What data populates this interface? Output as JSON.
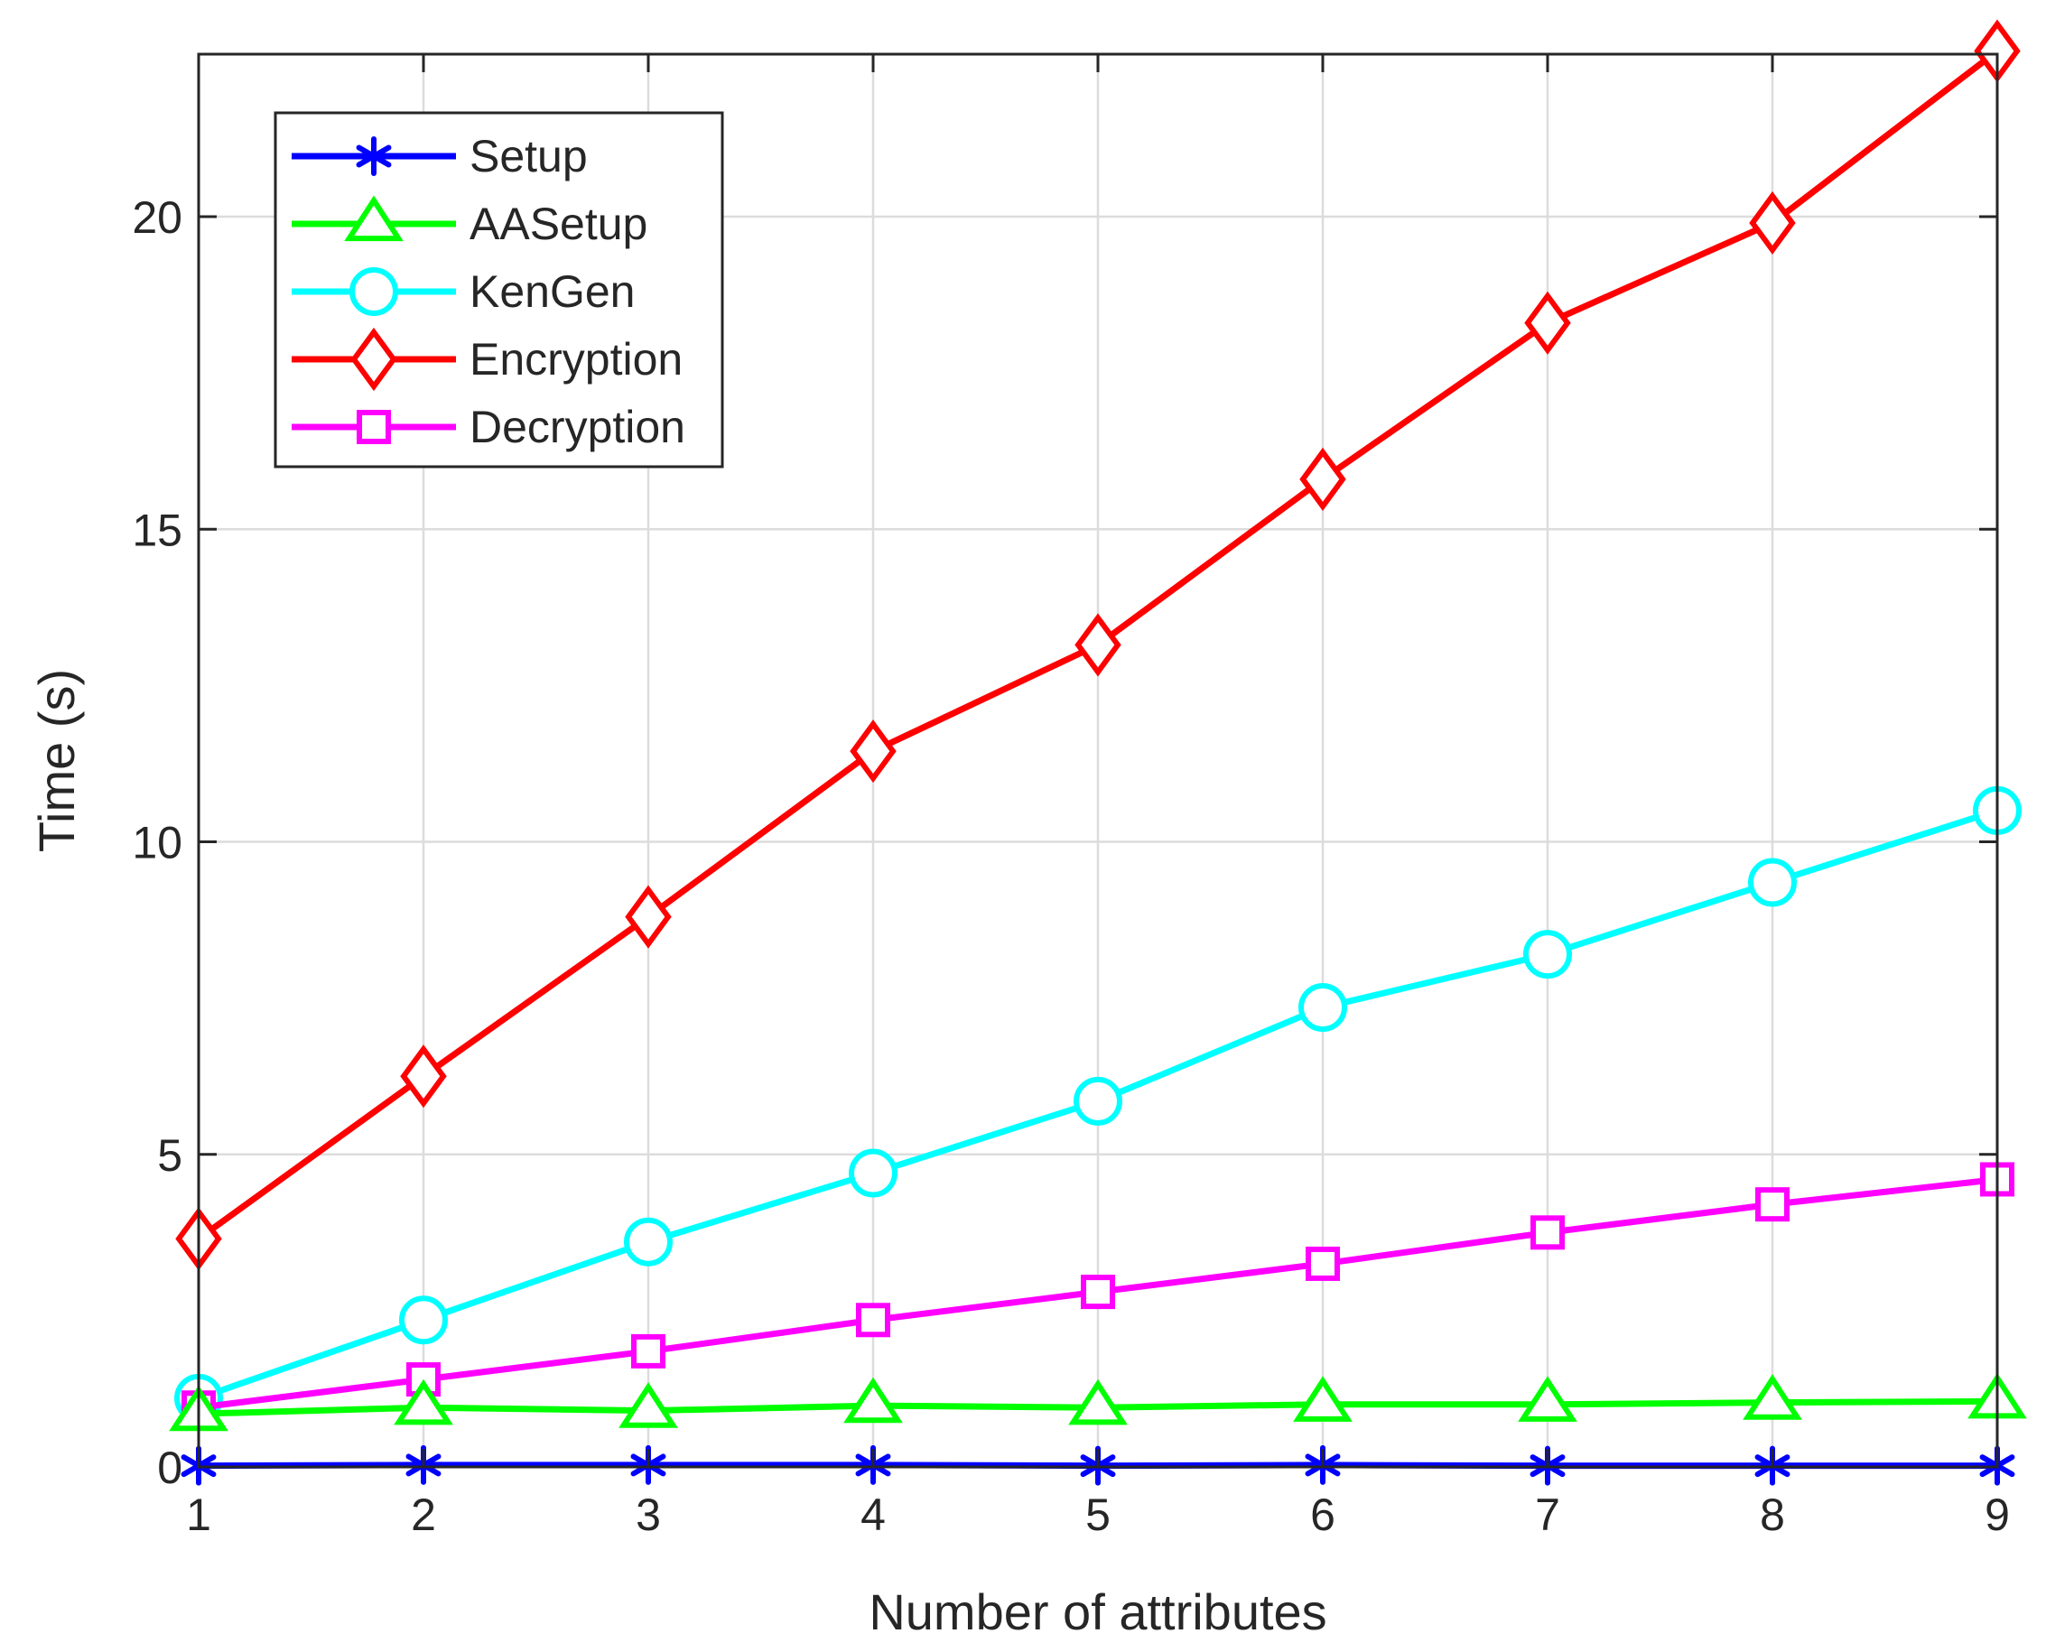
{
  "chart_data": {
    "type": "line",
    "xlabel": "Number of attributes",
    "ylabel": "Time (s)",
    "xlim": [
      1,
      9
    ],
    "ylim": [
      0,
      22.6
    ],
    "xticks": [
      1,
      2,
      3,
      4,
      5,
      6,
      7,
      8,
      9
    ],
    "yticks": [
      0,
      5,
      10,
      15,
      20
    ],
    "grid": true,
    "legend_position": "top-left",
    "x": [
      1,
      2,
      3,
      4,
      5,
      6,
      7,
      8,
      9
    ],
    "series": [
      {
        "name": "Setup",
        "color": "#0000ff",
        "marker": "asterisk",
        "values": [
          0.02,
          0.03,
          0.03,
          0.03,
          0.02,
          0.03,
          0.02,
          0.02,
          0.02
        ]
      },
      {
        "name": "AASetup",
        "color": "#00ff00",
        "marker": "triangle",
        "values": [
          0.85,
          0.95,
          0.9,
          0.98,
          0.95,
          1.0,
          1.0,
          1.03,
          1.05
        ]
      },
      {
        "name": "KenGen",
        "color": "#00ffff",
        "marker": "circle",
        "values": [
          1.1,
          2.35,
          3.6,
          4.7,
          5.85,
          7.35,
          8.2,
          9.35,
          10.5
        ]
      },
      {
        "name": "Encryption",
        "color": "#ff0000",
        "marker": "diamond",
        "values": [
          3.65,
          6.25,
          8.8,
          11.45,
          13.15,
          15.8,
          18.3,
          19.9,
          22.65
        ]
      },
      {
        "name": "Decryption",
        "color": "#ff00ff",
        "marker": "square",
        "values": [
          0.95,
          1.4,
          1.85,
          2.35,
          2.8,
          3.25,
          3.75,
          4.2,
          4.6
        ]
      }
    ]
  }
}
